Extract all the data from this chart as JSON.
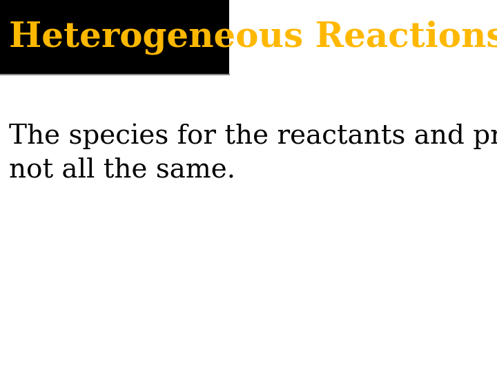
{
  "title": "Heterogeneous Reactions",
  "title_color": "#FFB800",
  "title_bg_color": "#000000",
  "title_fontsize": 36,
  "title_fontstyle": "bold",
  "body_text": "The species for the reactants and products are\nnot all the same.",
  "body_fontsize": 28,
  "body_color": "#000000",
  "fig_bg_color": "#ffffff",
  "title_bar_height": 0.2,
  "separator_color": "#888888",
  "separator_linewidth": 1.5
}
